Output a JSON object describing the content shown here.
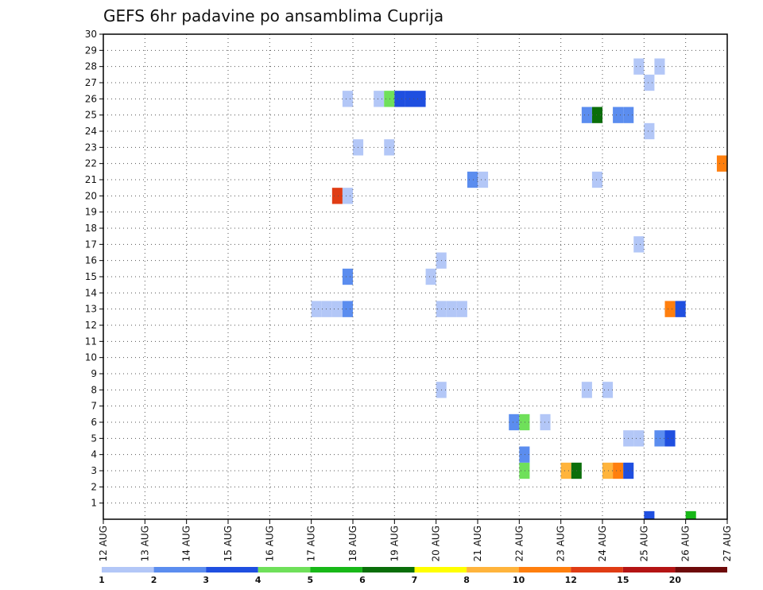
{
  "chart_data": {
    "type": "heatmap",
    "title": "GEFS 6hr padavine po ansamblima Cuprija",
    "xlabel": "",
    "ylabel": "",
    "x_ticks": [
      "12 AUG",
      "13 AUG",
      "14 AUG",
      "15 AUG",
      "16 AUG",
      "17 AUG",
      "18 AUG",
      "19 AUG",
      "20 AUG",
      "21 AUG",
      "22 AUG",
      "23 AUG",
      "24 AUG",
      "25 AUG",
      "26 AUG",
      "27 AUG"
    ],
    "y_ticks": [
      "1",
      "2",
      "3",
      "4",
      "5",
      "6",
      "7",
      "8",
      "9",
      "10",
      "11",
      "12",
      "13",
      "14",
      "15",
      "16",
      "17",
      "18",
      "19",
      "20",
      "21",
      "22",
      "23",
      "24",
      "25",
      "26",
      "27",
      "28",
      "29",
      "30"
    ],
    "xlim_days": [
      0,
      15
    ],
    "ylim_members": [
      0,
      30
    ],
    "time_step_hours": 6,
    "grid": true,
    "legend_position": "bottom",
    "colorbar": {
      "labels": [
        "1",
        "2",
        "3",
        "4",
        "5",
        "6",
        "7",
        "8",
        "10",
        "12",
        "15",
        "20"
      ],
      "colors": [
        "#b3c7f7",
        "#5b8def",
        "#1f4fe0",
        "#6fe05a",
        "#18b818",
        "#0a6e0a",
        "#ffff00",
        "#ffb43c",
        "#ff7f0e",
        "#e03c14",
        "#b41414",
        "#6e0a0a"
      ]
    },
    "cells": [
      {
        "member": 0,
        "t": 25,
        "v": 3
      },
      {
        "member": 0,
        "t": 26,
        "v": 5
      },
      {
        "member": 3,
        "t": 22,
        "v": 4
      },
      {
        "member": 3,
        "t": 23,
        "v": 8
      },
      {
        "member": 3,
        "t": 23.25,
        "v": 6
      },
      {
        "member": 3,
        "t": 24,
        "v": 9
      },
      {
        "member": 3,
        "t": 24.25,
        "v": 10
      },
      {
        "member": 3,
        "t": 24.5,
        "v": 3
      },
      {
        "member": 4,
        "t": 22,
        "v": 2
      },
      {
        "member": 4,
        "t": 27,
        "v": 1
      },
      {
        "member": 5,
        "t": 24.5,
        "v": 1
      },
      {
        "member": 5,
        "t": 24.75,
        "v": 1
      },
      {
        "member": 5,
        "t": 25.25,
        "v": 2
      },
      {
        "member": 5,
        "t": 25.5,
        "v": 3
      },
      {
        "member": 5,
        "t": 27,
        "v": 2
      },
      {
        "member": 6,
        "t": 21.75,
        "v": 2
      },
      {
        "member": 6,
        "t": 22,
        "v": 4
      },
      {
        "member": 6,
        "t": 22.5,
        "v": 1
      },
      {
        "member": 8,
        "t": 20,
        "v": 1
      },
      {
        "member": 8,
        "t": 23.5,
        "v": 1
      },
      {
        "member": 8,
        "t": 24,
        "v": 1
      },
      {
        "member": 13,
        "t": 17,
        "v": 1
      },
      {
        "member": 13,
        "t": 17.25,
        "v": 1
      },
      {
        "member": 13,
        "t": 17.5,
        "v": 1
      },
      {
        "member": 13,
        "t": 17.75,
        "v": 2
      },
      {
        "member": 13,
        "t": 20,
        "v": 1
      },
      {
        "member": 13,
        "t": 20.25,
        "v": 1
      },
      {
        "member": 13,
        "t": 20.5,
        "v": 1
      },
      {
        "member": 13,
        "t": 25.5,
        "v": 10
      },
      {
        "member": 13,
        "t": 25.75,
        "v": 3
      },
      {
        "member": 15,
        "t": 17.75,
        "v": 2
      },
      {
        "member": 15,
        "t": 19.75,
        "v": 1
      },
      {
        "member": 16,
        "t": 20,
        "v": 1
      },
      {
        "member": 17,
        "t": 24.75,
        "v": 1
      },
      {
        "member": 20,
        "t": 17.5,
        "v": 12
      },
      {
        "member": 20,
        "t": 17.75,
        "v": 1
      },
      {
        "member": 21,
        "t": 20.75,
        "v": 2
      },
      {
        "member": 21,
        "t": 21,
        "v": 1
      },
      {
        "member": 21,
        "t": 23.75,
        "v": 1
      },
      {
        "member": 22,
        "t": 26.75,
        "v": 10
      },
      {
        "member": 22,
        "t": 27,
        "v": 2
      },
      {
        "member": 23,
        "t": 18,
        "v": 1
      },
      {
        "member": 23,
        "t": 18.75,
        "v": 1
      },
      {
        "member": 24,
        "t": 25,
        "v": 1
      },
      {
        "member": 25,
        "t": 23.5,
        "v": 2
      },
      {
        "member": 25,
        "t": 23.75,
        "v": 6
      },
      {
        "member": 25,
        "t": 24.25,
        "v": 2
      },
      {
        "member": 25,
        "t": 24.5,
        "v": 2
      },
      {
        "member": 26,
        "t": 17.75,
        "v": 1
      },
      {
        "member": 26,
        "t": 18.5,
        "v": 1
      },
      {
        "member": 26,
        "t": 18.75,
        "v": 4
      },
      {
        "member": 26,
        "t": 19,
        "v": 3
      },
      {
        "member": 26,
        "t": 19.25,
        "v": 3
      },
      {
        "member": 26,
        "t": 19.5,
        "v": 3
      },
      {
        "member": 27,
        "t": 25,
        "v": 1
      },
      {
        "member": 28,
        "t": 24.75,
        "v": 1
      },
      {
        "member": 28,
        "t": 25.25,
        "v": 1
      }
    ]
  }
}
